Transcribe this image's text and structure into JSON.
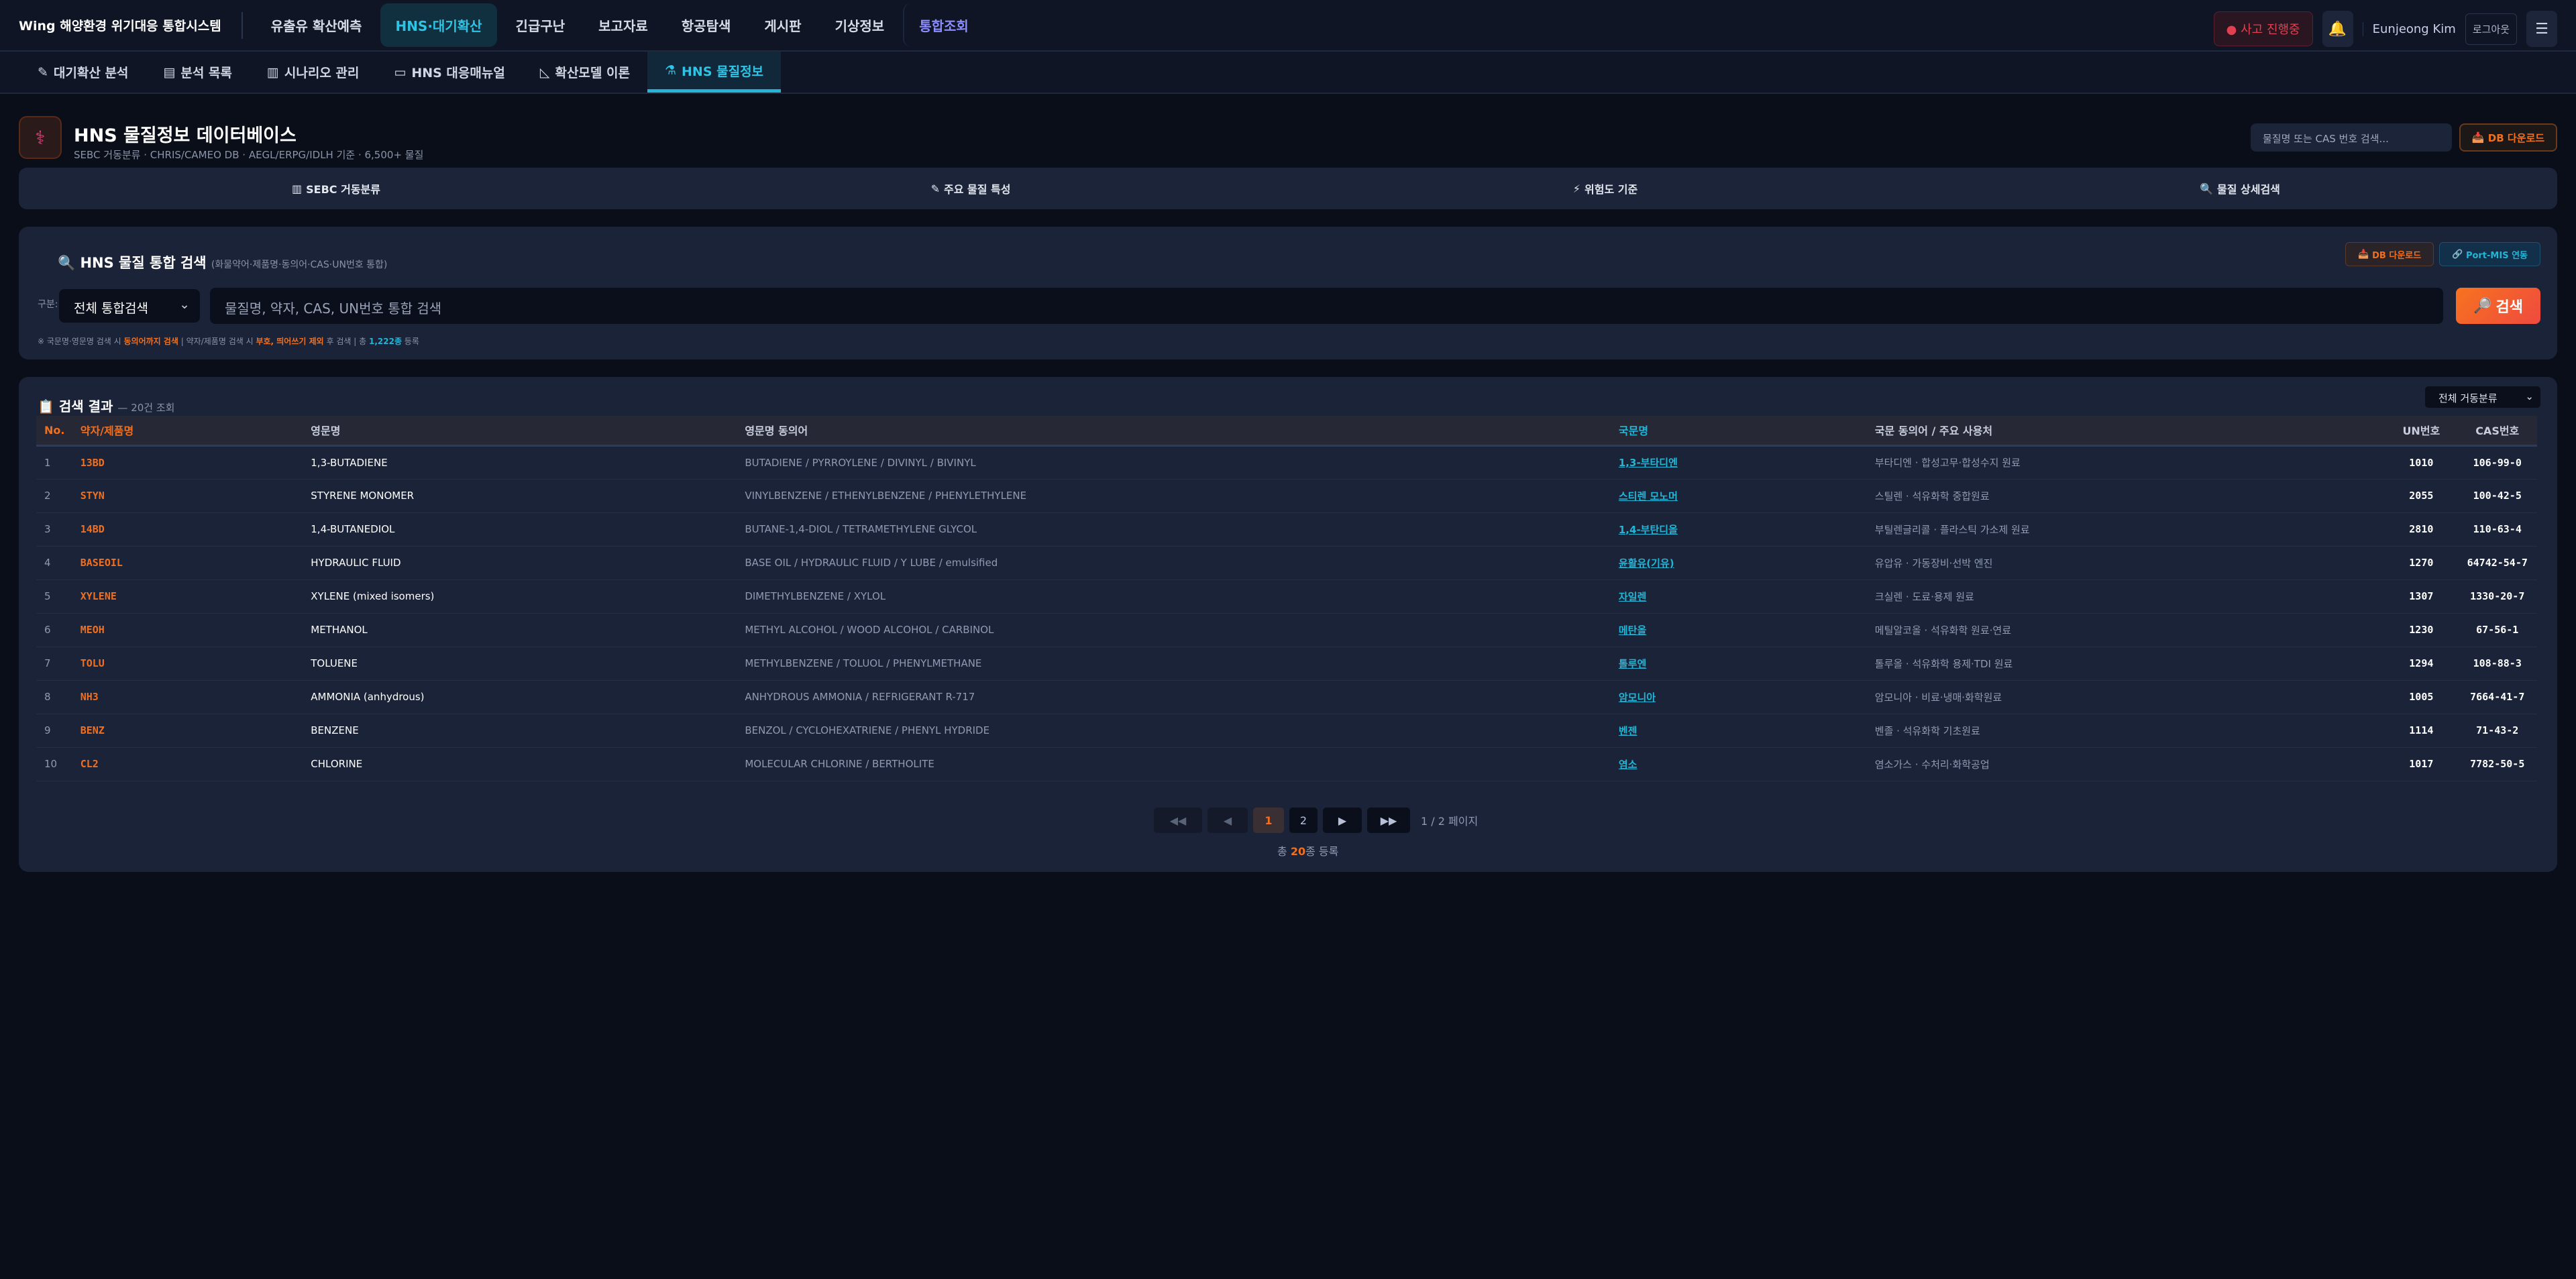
{
  "header": {
    "logo": "Wing 해양환경 위기대응 통합시스템",
    "nav": [
      "유출유 확산예측",
      "HNS·대기확산",
      "긴급구난",
      "보고자료",
      "항공탐색",
      "게시판",
      "기상정보",
      "통합조회"
    ],
    "active_nav": 1,
    "alert": "● 사고 진행중",
    "bell_icon": "bell-icon",
    "user": "Eunjeong Kim",
    "logout": "로그아웃",
    "menu_icon": "hamburger-icon"
  },
  "subnav": [
    {
      "icon": "✎",
      "label": "대기확산 분석"
    },
    {
      "icon": "▤",
      "label": "분석 목록"
    },
    {
      "icon": "▥",
      "label": "시나리오 관리"
    },
    {
      "icon": "▭",
      "label": "HNS 대응매뉴얼"
    },
    {
      "icon": "◺",
      "label": "확산모델 이론"
    },
    {
      "icon": "⚗",
      "label": "HNS 물질정보"
    }
  ],
  "page": {
    "title": "HNS 물질정보 데이터베이스",
    "subtitle": "SEBC 거동분류 · CHRIS/CAMEO DB · AEGL/ERPG/IDLH 기준 · 6,500+ 물질",
    "search_placeholder": "물질명 또는 CAS 번호 검색...",
    "download": "DB 다운로드"
  },
  "features": [
    {
      "icon": "▥",
      "label": "SEBC 거동분류"
    },
    {
      "icon": "✎",
      "label": "주요 물질 특성"
    },
    {
      "icon": "⚡",
      "label": "위험도 기준"
    },
    {
      "icon": "🔍",
      "label": "물질 상세검색"
    }
  ],
  "search": {
    "title": "HNS 물질 통합 검색",
    "title_note": "(화물약어·제품명·동의어·CAS·UN번호 통합)",
    "download": "DB 다운로드",
    "portmis": "Port-MIS 연동",
    "category_label": "구분:",
    "category_value": "전체 통합검색",
    "placeholder": "물질명, 약자, CAS, UN번호 통합 검색",
    "button": "검색",
    "hint": {
      "p1": "※ 국문명·영문명 검색 시 ",
      "h1": "동의어까지 검색",
      "p2": " | 약자/제품명 검색 시 ",
      "h2": "부호, 띄어쓰기 제외",
      "p3": " 후 검색 | 총 ",
      "h3": "1,222종",
      "p4": " 등록"
    }
  },
  "results": {
    "title": "검색 결과",
    "count": "— 20건 조회",
    "filter": "전체 거동분류",
    "columns": [
      "No.",
      "약자/제품명",
      "영문명",
      "영문명 동의어",
      "국문명",
      "국문 동의어 / 주요 사용처",
      "UN번호",
      "CAS번호"
    ],
    "rows": [
      [
        "1",
        "13BD",
        "1,3-BUTADIENE",
        "BUTADIENE / PYRROYLENE / DIVINYL / BIVINYL",
        "1,3-부타디엔",
        "부타디엔 · 합성고무·합성수지 원료",
        "1010",
        "106-99-0"
      ],
      [
        "2",
        "STYN",
        "STYRENE MONOMER",
        "VINYLBENZENE / ETHENYLBENZENE / PHENYLETHYLENE",
        "스티렌 모노머",
        "스틸렌 · 석유화학 중합원료",
        "2055",
        "100-42-5"
      ],
      [
        "3",
        "14BD",
        "1,4-BUTANEDIOL",
        "BUTANE-1,4-DIOL / TETRAMETHYLENE GLYCOL",
        "1,4-부탄디올",
        "부틸렌글리콜 · 플라스틱 가소제 원료",
        "2810",
        "110-63-4"
      ],
      [
        "4",
        "BASEOIL",
        "HYDRAULIC FLUID",
        "BASE OIL / HYDRAULIC FLUID / Y LUBE / emulsified",
        "윤활유(기유)",
        "유압유 · 가동장비·선박 엔진",
        "1270",
        "64742-54-7"
      ],
      [
        "5",
        "XYLENE",
        "XYLENE (mixed isomers)",
        "DIMETHYLBENZENE / XYLOL",
        "자일렌",
        "크실렌 · 도료·용제 원료",
        "1307",
        "1330-20-7"
      ],
      [
        "6",
        "MEOH",
        "METHANOL",
        "METHYL ALCOHOL / WOOD ALCOHOL / CARBINOL",
        "메탄올",
        "메틸알코올 · 석유화학 원료·연료",
        "1230",
        "67-56-1"
      ],
      [
        "7",
        "TOLU",
        "TOLUENE",
        "METHYLBENZENE / TOLUOL / PHENYLMETHANE",
        "톨루엔",
        "톨루올 · 석유화학 용제·TDI 원료",
        "1294",
        "108-88-3"
      ],
      [
        "8",
        "NH3",
        "AMMONIA (anhydrous)",
        "ANHYDROUS AMMONIA / REFRIGERANT R-717",
        "암모니아",
        "암모니아 · 비료·냉매·화학원료",
        "1005",
        "7664-41-7"
      ],
      [
        "9",
        "BENZ",
        "BENZENE",
        "BENZOL / CYCLOHEXATRIENE / PHENYL HYDRIDE",
        "벤젠",
        "벤졸 · 석유화학 기초원료",
        "1114",
        "71-43-2"
      ],
      [
        "10",
        "CL2",
        "CHLORINE",
        "MOLECULAR CHLORINE / BERTHOLITE",
        "염소",
        "염소가스 · 수처리·화학공업",
        "1017",
        "7782-50-5"
      ]
    ]
  },
  "pagination": {
    "first": "◀◀",
    "prev": "◀",
    "pages": [
      "1",
      "2"
    ],
    "current": "1",
    "next": "▶",
    "last": "▶▶",
    "page_text": "1 / 2 페이지",
    "total_pre": "총 ",
    "total_num": "20",
    "total_post": "종 등록"
  }
}
